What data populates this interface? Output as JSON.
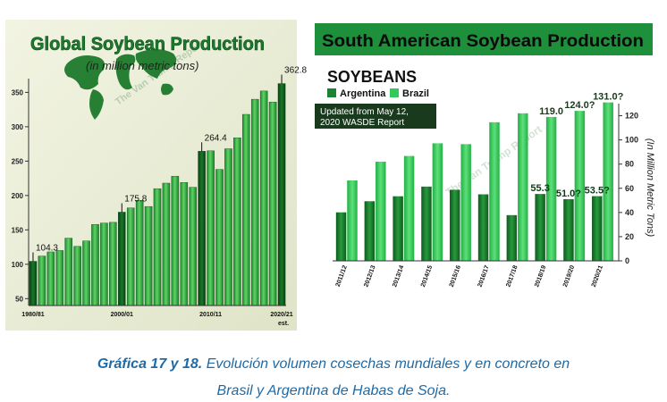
{
  "chart_data": [
    {
      "type": "bar",
      "title": "Global Soybean Production",
      "subtitle": "(in million metric tons)",
      "watermark": "The Van Trump Report",
      "x_tick_labels": [
        "1980/81",
        "2000/01",
        "2010/11",
        "2020/21",
        "est."
      ],
      "ylim": [
        50,
        370
      ],
      "y_ticks": [
        50,
        100,
        150,
        200,
        250,
        300,
        350
      ],
      "grid": false,
      "colors": {
        "bar_normal": "#27a53a",
        "bar_dark": "#0f5a1c",
        "bar_light": "#66d36e",
        "background": "#e9ecd4"
      },
      "values": [
        104.3,
        112,
        118,
        120,
        138,
        126,
        134,
        158,
        160,
        161,
        175.8,
        182,
        193,
        184,
        210,
        218,
        228,
        219,
        212,
        264.4,
        265,
        238,
        268,
        284,
        318,
        340,
        352,
        336,
        362.8
      ],
      "highlighted_indices": [
        0,
        10,
        19,
        28
      ],
      "annotations": [
        {
          "label": "104.3",
          "index": 0
        },
        {
          "label": "175.8",
          "index": 10
        },
        {
          "label": "264.4",
          "index": 19
        },
        {
          "label": "362.8",
          "index": 28
        }
      ]
    },
    {
      "type": "bar",
      "title": "South American Soybean Production",
      "subtitle": "SOYBEANS",
      "note": "Updated from May 12, 2020 WASDE Report",
      "watermark": "The Van Trump Report",
      "ylabel": "(In Million Metric Tons)",
      "ylim": [
        0,
        130
      ],
      "y_ticks": [
        0,
        20,
        40,
        60,
        80,
        100,
        120
      ],
      "grid": false,
      "legend": "top-left",
      "colors": {
        "argentina": "#1b8232",
        "brazil": "#34c95a",
        "title_bar": "#1e8f3a"
      },
      "categories": [
        "2011/12",
        "2012/13",
        "2013/14",
        "2014/15",
        "2015/16",
        "2016/17",
        "2017/18",
        "2018/19",
        "2019/20",
        "2020/21"
      ],
      "series": [
        {
          "name": "Argentina",
          "values": [
            40.1,
            49.3,
            53.4,
            61.4,
            58.8,
            55,
            37.8,
            55.3,
            51.0,
            53.5
          ]
        },
        {
          "name": "Brazil",
          "values": [
            66.5,
            82,
            86.7,
            97.2,
            96.5,
            114.6,
            122,
            119.0,
            124.0,
            131.0
          ]
        }
      ],
      "annotations": [
        {
          "label": "55.3",
          "category": "2018/19",
          "series": "Argentina"
        },
        {
          "label": "51.0?",
          "category": "2019/20",
          "series": "Argentina"
        },
        {
          "label": "53.5?",
          "category": "2020/21",
          "series": "Argentina"
        },
        {
          "label": "119.0",
          "category": "2018/19",
          "series": "Brazil"
        },
        {
          "label": "124.0?",
          "category": "2019/20",
          "series": "Brazil"
        },
        {
          "label": "131.0?",
          "category": "2020/21",
          "series": "Brazil"
        }
      ]
    }
  ],
  "caption": {
    "bold": "Gráfica 17 y 18.",
    "line1_rest": " Evolución volumen cosechas mundiales y en concreto en",
    "line2": "Brasil y Argentina de Habas de Soja."
  }
}
